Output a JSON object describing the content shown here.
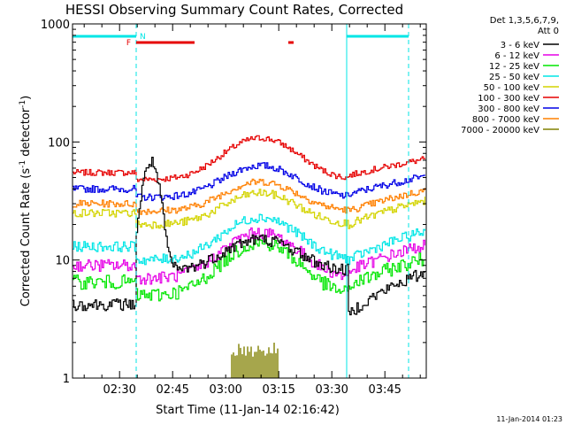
{
  "chart_data": {
    "type": "line",
    "title": "HESSI Observing Summary Count Rates, Corrected",
    "xlabel": "Start Time (11-Jan-14 02:16:42)",
    "ylabel_main": "Corrected Count Rate (s",
    "ylabel_sup1": "-1",
    "ylabel_mid": " detector",
    "ylabel_sup2": "-1",
    "ylabel_end": ")",
    "y_scale": "log",
    "ylim": [
      1,
      1000
    ],
    "xlim_minutes": [
      0,
      100
    ],
    "y_ticks": [
      {
        "value": 1,
        "label": "1"
      },
      {
        "value": 10,
        "label": "10"
      },
      {
        "value": 100,
        "label": "100"
      },
      {
        "value": 1000,
        "label": "1000"
      }
    ],
    "x_ticks": [
      {
        "minute": 13.3,
        "label": "02:30"
      },
      {
        "minute": 28.3,
        "label": "02:45"
      },
      {
        "minute": 43.3,
        "label": "03:00"
      },
      {
        "minute": 58.3,
        "label": "03:15"
      },
      {
        "minute": 73.3,
        "label": "03:30"
      },
      {
        "minute": 88.3,
        "label": "03:45"
      }
    ],
    "legend_header": [
      "Det 1,3,5,6,7,9,",
      "Att 0"
    ],
    "legend": [
      {
        "label": "3 - 6 keV",
        "color": "#000000"
      },
      {
        "label": "6 - 12 keV",
        "color": "#e600e6"
      },
      {
        "label": "12 - 25 keV",
        "color": "#00e600"
      },
      {
        "label": "25 - 50 keV",
        "color": "#00e6e6"
      },
      {
        "label": "50 - 100 keV",
        "color": "#d4d400"
      },
      {
        "label": "100 - 300 keV",
        "color": "#e60000"
      },
      {
        "label": "300 - 800 keV",
        "color": "#0000e6"
      },
      {
        "label": "800 - 7000 keV",
        "color": "#ff8000"
      },
      {
        "label": "7000 - 20000 keV",
        "color": "#808000"
      }
    ],
    "night_boundaries_minutes": [
      18,
      77.5,
      95
    ],
    "flags": [
      {
        "label": "F",
        "color": "#e60000"
      },
      {
        "label": "N",
        "color": "#00e6e6"
      }
    ],
    "footer_date": "11-Jan-2014 01:23"
  }
}
